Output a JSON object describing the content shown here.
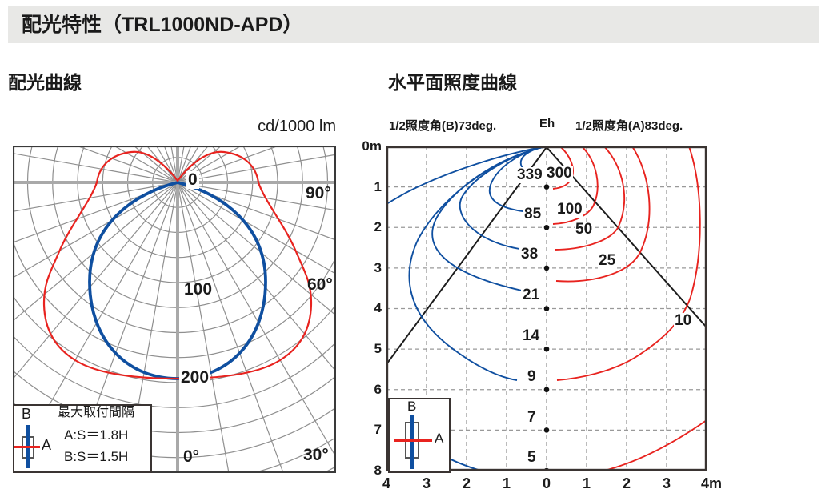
{
  "banner": {
    "title": "配光特性（TRL1000ND-APD）"
  },
  "left_chart": {
    "title": "配光曲線",
    "unit_label": "cd/1000 lm",
    "radial_axis_labels": {
      "zero": "0",
      "v100": "100",
      "v200": "200"
    },
    "angle_labels": {
      "a90": "90°",
      "a60": "60°",
      "a30": "30°",
      "a0": "0°"
    },
    "legend": {
      "b_label": "B",
      "a_label": "A",
      "heading": "最大取付間隔",
      "line_a": "A:S＝1.8H",
      "line_b": "B:S＝1.5H"
    }
  },
  "right_chart": {
    "title": "水平面照度曲線",
    "note_b": "1/2照度角(B)73deg.",
    "note_eh": "Eh",
    "note_a": "1/2照度角(A)83deg.",
    "y_axis_labels": [
      "0m",
      "1",
      "2",
      "3",
      "4",
      "5",
      "6",
      "7",
      "8"
    ],
    "x_axis_labels": [
      "4",
      "3",
      "2",
      "1",
      "0",
      "1",
      "2",
      "3",
      "4m"
    ],
    "center_values": [
      "339",
      "85",
      "38",
      "21",
      "14",
      "9",
      "7",
      "5"
    ],
    "contour_labels": [
      "300",
      "100",
      "50",
      "25",
      "10"
    ],
    "legend": {
      "b_label": "B",
      "a_label": "A"
    }
  },
  "colors": {
    "red": "#e8231f",
    "blue": "#0f4fa0",
    "grid_gray": "#8f8f8f",
    "axis_gray": "#a9a9a9",
    "banner_bg": "#e8e8e6",
    "diagonal_black": "#1c1c1c"
  },
  "chart_data": [
    {
      "type": "line",
      "subtype": "polar-luminous-intensity",
      "title": "配光曲線",
      "units": "cd/1000 lm",
      "radial_axis": {
        "labeled_ticks": [
          0,
          100,
          200
        ],
        "ring_step": 25,
        "max_shown": 200
      },
      "angle_labels_deg": [
        0,
        30,
        60,
        90
      ],
      "series": [
        {
          "name": "A",
          "color": "#e8231f",
          "points_deg_cd": [
            [
              0,
              200
            ],
            [
              15,
              197
            ],
            [
              30,
              190
            ],
            [
              45,
              178
            ],
            [
              60,
              135
            ],
            [
              75,
              103
            ],
            [
              90,
              81
            ],
            [
              100,
              62
            ],
            [
              110,
              57
            ],
            [
              121,
              59
            ],
            [
              135,
              0
            ]
          ]
        },
        {
          "name": "B",
          "color": "#0f4fa0",
          "shape": "r = 200·cos(θ), circle through origin",
          "points_deg_cd": [
            [
              0,
              200
            ],
            [
              30,
              173
            ],
            [
              45,
              141
            ],
            [
              60,
              100
            ],
            [
              75,
              52
            ],
            [
              90,
              0
            ]
          ]
        }
      ],
      "legend_note": {
        "heading": "最大取付間隔",
        "A": "S＝1.8H",
        "B": "S＝1.5H"
      }
    },
    {
      "type": "line",
      "subtype": "iso-lux-horizontal-illuminance",
      "title": "水平面照度曲線",
      "eh_axis_label": "Eh",
      "x_axis_m": [
        -4,
        -3,
        -2,
        -1,
        0,
        1,
        2,
        3,
        4
      ],
      "depth_axis_m": [
        0,
        1,
        2,
        3,
        4,
        5,
        6,
        7,
        8
      ],
      "center_lux_by_depth_m": {
        "1": 339,
        "2": 85,
        "3": 38,
        "4": 21,
        "5": 14,
        "6": 9,
        "7": 7,
        "8": 5
      },
      "contours_lux": [
        300,
        100,
        50,
        25,
        10
      ],
      "contour_axis_crossing_depth_m": {
        "300": 1.15,
        "100": 1.9,
        "50": 2.5,
        "25": 3.3,
        "10": 5.8,
        "5": 8.0
      },
      "half_illuminance_angle_deg": {
        "B": 73,
        "A": 83
      },
      "sides": {
        "left": "B (blue)",
        "right": "A (red)"
      }
    }
  ]
}
